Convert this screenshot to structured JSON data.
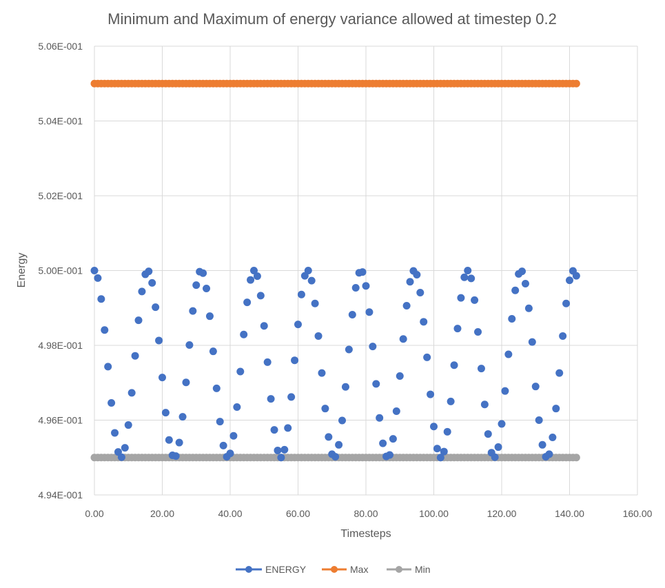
{
  "chart_data": {
    "type": "scatter",
    "title": "Minimum and Maximum of energy variance allowed at timestep 0.2",
    "xlabel": "Timesteps",
    "ylabel": "Energy",
    "xlim": [
      0,
      160
    ],
    "ylim": [
      0.494,
      0.506
    ],
    "x_ticks": [
      "0.00",
      "20.00",
      "40.00",
      "60.00",
      "80.00",
      "100.00",
      "120.00",
      "140.00",
      "160.00"
    ],
    "x_tick_values": [
      0,
      20,
      40,
      60,
      80,
      100,
      120,
      140,
      160
    ],
    "y_ticks": [
      "4.94E-001",
      "4.96E-001",
      "4.98E-001",
      "5.00E-001",
      "5.02E-001",
      "5.04E-001",
      "5.06E-001"
    ],
    "y_tick_values": [
      0.494,
      0.496,
      0.498,
      0.5,
      0.502,
      0.504,
      0.506
    ],
    "grid": true,
    "legend_position": "bottom",
    "legend": [
      "ENERGY",
      "Max",
      "Min"
    ],
    "x": "0..142 step 1",
    "series": [
      {
        "name": "ENERGY",
        "color": "#4472C4",
        "x_start": 0,
        "x_step": 1,
        "line": false,
        "values": [
          0.5,
          0.4998,
          0.49924,
          0.49841,
          0.49743,
          0.49646,
          0.49566,
          0.49515,
          0.49501,
          0.49526,
          0.49587,
          0.49673,
          0.49772,
          0.49867,
          0.49944,
          0.4999,
          0.49998,
          0.49967,
          0.49902,
          0.49813,
          0.49714,
          0.4962,
          0.49547,
          0.49506,
          0.49504,
          0.4954,
          0.49609,
          0.49701,
          0.49801,
          0.49892,
          0.49961,
          0.49997,
          0.49993,
          0.49952,
          0.49878,
          0.49784,
          0.49685,
          0.49596,
          0.49532,
          0.49502,
          0.49511,
          0.49558,
          0.49635,
          0.4973,
          0.49829,
          0.49915,
          0.49975,
          0.5,
          0.49985,
          0.49933,
          0.49852,
          0.49755,
          0.49657,
          0.49574,
          0.49519,
          0.495,
          0.49521,
          0.49579,
          0.49662,
          0.4976,
          0.49856,
          0.49936,
          0.49986,
          0.5,
          0.49973,
          0.49912,
          0.49825,
          0.49726,
          0.49631,
          0.49555,
          0.49509,
          0.49502,
          0.49534,
          0.49599,
          0.49689,
          0.49789,
          0.49882,
          0.49954,
          0.49994,
          0.49996,
          0.49959,
          0.49889,
          0.49797,
          0.49697,
          0.49606,
          0.49538,
          0.49503,
          0.49507,
          0.4955,
          0.49624,
          0.49718,
          0.49817,
          0.49906,
          0.4997,
          0.49999,
          0.49989,
          0.49941,
          0.49863,
          0.49768,
          0.49669,
          0.49583,
          0.49524,
          0.495,
          0.49516,
          0.49569,
          0.4965,
          0.49747,
          0.49845,
          0.49927,
          0.49982,
          0.5,
          0.49979,
          0.49921,
          0.49836,
          0.49738,
          0.49642,
          0.49563,
          0.49513,
          0.49501,
          0.49528,
          0.4959,
          0.49678,
          0.49776,
          0.49871,
          0.49947,
          0.49991,
          0.49998,
          0.49965,
          0.49899,
          0.49809,
          0.4969,
          0.496,
          0.49534,
          0.49502,
          0.49509,
          0.49554,
          0.49631,
          0.49726,
          0.49825,
          0.49912,
          0.49974,
          0.49999,
          0.49986
        ]
      },
      {
        "name": "Max",
        "color": "#ED7D31",
        "x_start": 0,
        "x_end": 142,
        "constant": 0.505,
        "line": true
      },
      {
        "name": "Min",
        "color": "#A5A5A5",
        "x_start": 0,
        "x_end": 142,
        "constant": 0.495,
        "line": true
      }
    ]
  }
}
